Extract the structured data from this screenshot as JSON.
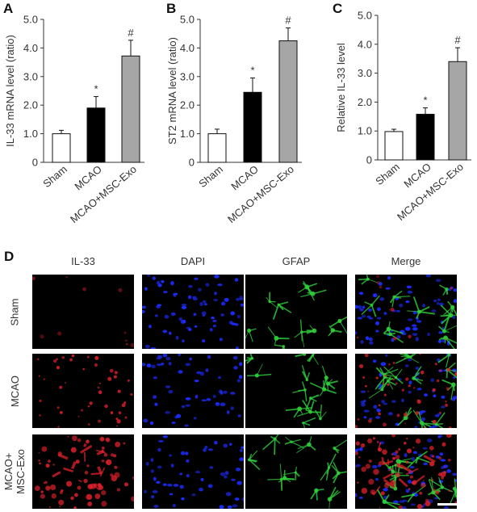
{
  "chart_data": [
    {
      "panel": "A",
      "type": "bar",
      "categories": [
        "Sham",
        "MCAO",
        "MCAO+MSC-Exo"
      ],
      "values": [
        1.0,
        1.9,
        3.72
      ],
      "errors": [
        0.12,
        0.4,
        0.55
      ],
      "annotations": [
        "",
        "*",
        "#"
      ],
      "bar_colors": [
        "#ffffff",
        "#000000",
        "#a6a6a6"
      ],
      "ylabel": "IL-33 mRNA level (ratio)",
      "ylim": [
        0,
        5.0
      ],
      "yticks": [
        "0",
        "1.0",
        "2.0",
        "3.0",
        "4.0",
        "5.0"
      ]
    },
    {
      "panel": "B",
      "type": "bar",
      "categories": [
        "Sham",
        "MCAO",
        "MCAO+MSC-Exo"
      ],
      "values": [
        1.0,
        2.45,
        4.25
      ],
      "errors": [
        0.16,
        0.5,
        0.45
      ],
      "annotations": [
        "",
        "*",
        "#"
      ],
      "bar_colors": [
        "#ffffff",
        "#000000",
        "#a6a6a6"
      ],
      "ylabel": "ST2 mRNA level (ratio)",
      "ylim": [
        0,
        5.0
      ],
      "yticks": [
        "0",
        "1.0",
        "2.0",
        "3.0",
        "4.0",
        "5.0"
      ]
    },
    {
      "panel": "C",
      "type": "bar",
      "categories": [
        "Sham",
        "MCAO",
        "MCAO+MSC-Exo"
      ],
      "values": [
        0.98,
        1.58,
        3.4
      ],
      "errors": [
        0.08,
        0.22,
        0.48
      ],
      "annotations": [
        "",
        "*",
        "#"
      ],
      "bar_colors": [
        "#ffffff",
        "#000000",
        "#a6a6a6"
      ],
      "ylabel": "Relative IL-33 level",
      "ylim": [
        0,
        5.0
      ],
      "yticks": [
        "0",
        "1.0",
        "2.0",
        "3.0",
        "4.0",
        "5.0"
      ]
    }
  ],
  "panel_d": {
    "letter": "D",
    "columns": [
      "IL-33",
      "DAPI",
      "GFAP",
      "Merge"
    ],
    "rows": [
      "Sham",
      "MCAO",
      "MCAO+\nMSC-Exo"
    ],
    "colors": {
      "il33": "#e0202a",
      "dapi": "#1c2cff",
      "gfap": "#2fd03a"
    }
  }
}
